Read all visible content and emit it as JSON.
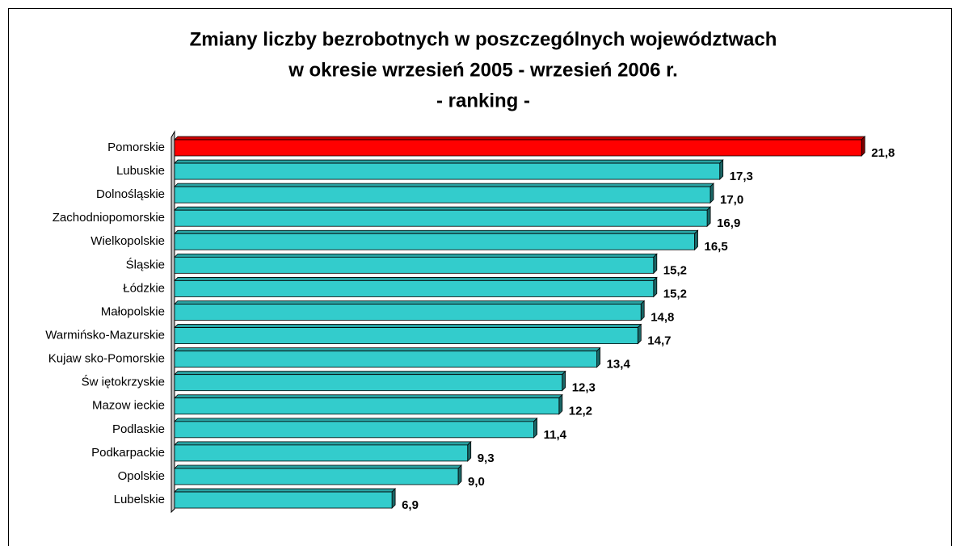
{
  "chart_data": {
    "type": "hbar",
    "title": [
      "Zmiany liczby bezrobotnych w poszczególnych województwach",
      "w okresie wrzesień 2005 - wrzesień 2006 r.",
      "- ranking -"
    ],
    "categories": [
      "Pomorskie",
      "Lubuskie",
      "Dolnośląskie",
      "Zachodniopomorskie",
      "Wielkopolskie",
      "Śląskie",
      "Łódzkie",
      "Małopolskie",
      "Warmińsko-Mazurskie",
      "Kujaw sko-Pomorskie",
      "Św iętokrzyskie",
      "Mazow ieckie",
      "Podlaskie",
      "Podkarpackie",
      "Opolskie",
      "Lubelskie"
    ],
    "values": [
      21.8,
      17.3,
      17.0,
      16.9,
      16.5,
      15.2,
      15.2,
      14.8,
      14.7,
      13.4,
      12.3,
      12.2,
      11.4,
      9.3,
      9.0,
      6.9
    ],
    "value_labels": [
      "21,8",
      "17,3",
      "17,0",
      "16,9",
      "16,5",
      "15,2",
      "15,2",
      "14,8",
      "14,7",
      "13,4",
      "12,3",
      "12,2",
      "11,4",
      "9,3",
      "9,0",
      "6,9"
    ],
    "colors": [
      "#ff0000",
      "#33cccc",
      "#33cccc",
      "#33cccc",
      "#33cccc",
      "#33cccc",
      "#33cccc",
      "#33cccc",
      "#33cccc",
      "#33cccc",
      "#33cccc",
      "#33cccc",
      "#33cccc",
      "#33cccc",
      "#33cccc",
      "#33cccc"
    ]
  }
}
